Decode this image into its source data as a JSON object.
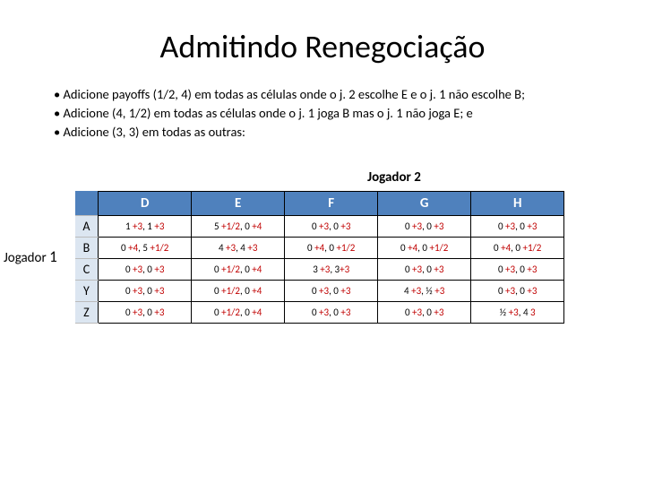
{
  "title": "Admitindo Renegociação",
  "bullets": [
    "• Adicione payoffs (1/2, 4) em todas as células onde o j. 2 escolhe E e o j. 1 não escolhe B;",
    "• Adicione (4, 1/2) em todas as células onde o j. 1 joga B mas o j. 1 não joga E; e",
    "• Adicione (3, 3) em todas as outras:"
  ],
  "player2_label": "Jogador 2",
  "player1_label_a": "Jogador ",
  "player1_label_b": "1",
  "columns": [
    "D",
    "E",
    "F",
    "G",
    "H"
  ],
  "rows": [
    "A",
    "B",
    "C",
    "Y",
    "Z"
  ],
  "colors": {
    "header_bg": "#4f81bd",
    "header_fg": "#ffffff",
    "rowhead_bg": "#dce6f1",
    "border": "#000000",
    "add_color": "#c00000",
    "base_color": "#000000",
    "background": "#ffffff"
  },
  "typography": {
    "title_fontsize": 36,
    "body_fontsize": 14.5,
    "cell_fontsize": 11,
    "header_fontsize": 15
  },
  "cells": {
    "A": {
      "D": [
        [
          "base",
          "1 "
        ],
        [
          "add",
          "+3"
        ],
        [
          "base",
          ", 1 "
        ],
        [
          "add",
          "+3"
        ]
      ],
      "E": [
        [
          "base",
          "5 "
        ],
        [
          "add",
          "+1/2"
        ],
        [
          "base",
          ", 0 "
        ],
        [
          "add",
          "+4"
        ]
      ],
      "F": [
        [
          "base",
          "0 "
        ],
        [
          "add",
          "+3"
        ],
        [
          "base",
          ", 0 "
        ],
        [
          "add",
          "+3"
        ]
      ],
      "G": [
        [
          "base",
          "0 "
        ],
        [
          "add",
          "+3"
        ],
        [
          "base",
          ", 0 "
        ],
        [
          "add",
          "+3"
        ]
      ],
      "H": [
        [
          "base",
          "0 "
        ],
        [
          "add",
          "+3"
        ],
        [
          "base",
          ", 0 "
        ],
        [
          "add",
          "+3"
        ]
      ]
    },
    "B": {
      "D": [
        [
          "base",
          "0 "
        ],
        [
          "add",
          "+4"
        ],
        [
          "base",
          ", 5 "
        ],
        [
          "add",
          "+1/2"
        ]
      ],
      "E": [
        [
          "base",
          "4 "
        ],
        [
          "add",
          "+3"
        ],
        [
          "base",
          ", 4 "
        ],
        [
          "add",
          "+3"
        ]
      ],
      "F": [
        [
          "base",
          "0 "
        ],
        [
          "add",
          "+4"
        ],
        [
          "base",
          ", 0 "
        ],
        [
          "add",
          "+1/2"
        ]
      ],
      "G": [
        [
          "base",
          "0 "
        ],
        [
          "add",
          "+4"
        ],
        [
          "base",
          ", 0 "
        ],
        [
          "add",
          "+1/2"
        ]
      ],
      "H": [
        [
          "base",
          "0 "
        ],
        [
          "add",
          "+4"
        ],
        [
          "base",
          ", 0 "
        ],
        [
          "add",
          "+1/2"
        ]
      ]
    },
    "C": {
      "D": [
        [
          "base",
          "0 "
        ],
        [
          "add",
          "+3"
        ],
        [
          "base",
          ", 0 "
        ],
        [
          "add",
          "+3"
        ]
      ],
      "E": [
        [
          "base",
          "0 "
        ],
        [
          "add",
          "+1/2"
        ],
        [
          "base",
          ", 0 "
        ],
        [
          "add",
          "+4"
        ]
      ],
      "F": [
        [
          "base",
          "3 "
        ],
        [
          "add",
          "+3"
        ],
        [
          "base",
          ", 3"
        ],
        [
          "add",
          "+3"
        ]
      ],
      "G": [
        [
          "base",
          "0 "
        ],
        [
          "add",
          "+3"
        ],
        [
          "base",
          ", 0 "
        ],
        [
          "add",
          "+3"
        ]
      ],
      "H": [
        [
          "base",
          "0 "
        ],
        [
          "add",
          "+3"
        ],
        [
          "base",
          ", 0 "
        ],
        [
          "add",
          "+3"
        ]
      ]
    },
    "Y": {
      "D": [
        [
          "base",
          "0 "
        ],
        [
          "add",
          "+3"
        ],
        [
          "base",
          ", 0 "
        ],
        [
          "add",
          "+3"
        ]
      ],
      "E": [
        [
          "base",
          "0 "
        ],
        [
          "add",
          "+1/2"
        ],
        [
          "base",
          ", 0 "
        ],
        [
          "add",
          "+4"
        ]
      ],
      "F": [
        [
          "base",
          "0 "
        ],
        [
          "add",
          "+3"
        ],
        [
          "base",
          ", 0 "
        ],
        [
          "add",
          "+3"
        ]
      ],
      "G": [
        [
          "base",
          "4 "
        ],
        [
          "add",
          "+3"
        ],
        [
          "base",
          ", ½ "
        ],
        [
          "add",
          "+3"
        ]
      ],
      "H": [
        [
          "base",
          "0 "
        ],
        [
          "add",
          "+3"
        ],
        [
          "base",
          ", 0 "
        ],
        [
          "add",
          "+3"
        ]
      ]
    },
    "Z": {
      "D": [
        [
          "base",
          "0 "
        ],
        [
          "add",
          "+3"
        ],
        [
          "base",
          ", 0 "
        ],
        [
          "add",
          "+3"
        ]
      ],
      "E": [
        [
          "base",
          "0 "
        ],
        [
          "add",
          "+1/2"
        ],
        [
          "base",
          ", 0 "
        ],
        [
          "add",
          "+4"
        ]
      ],
      "F": [
        [
          "base",
          "0 "
        ],
        [
          "add",
          "+3"
        ],
        [
          "base",
          ", 0 "
        ],
        [
          "add",
          "+3"
        ]
      ],
      "G": [
        [
          "base",
          "0 "
        ],
        [
          "add",
          "+3"
        ],
        [
          "base",
          ", 0 "
        ],
        [
          "add",
          "+3"
        ]
      ],
      "H": [
        [
          "base",
          "½ "
        ],
        [
          "add",
          "+3"
        ],
        [
          "base",
          ", 4 "
        ],
        [
          "add",
          "3"
        ]
      ]
    }
  }
}
